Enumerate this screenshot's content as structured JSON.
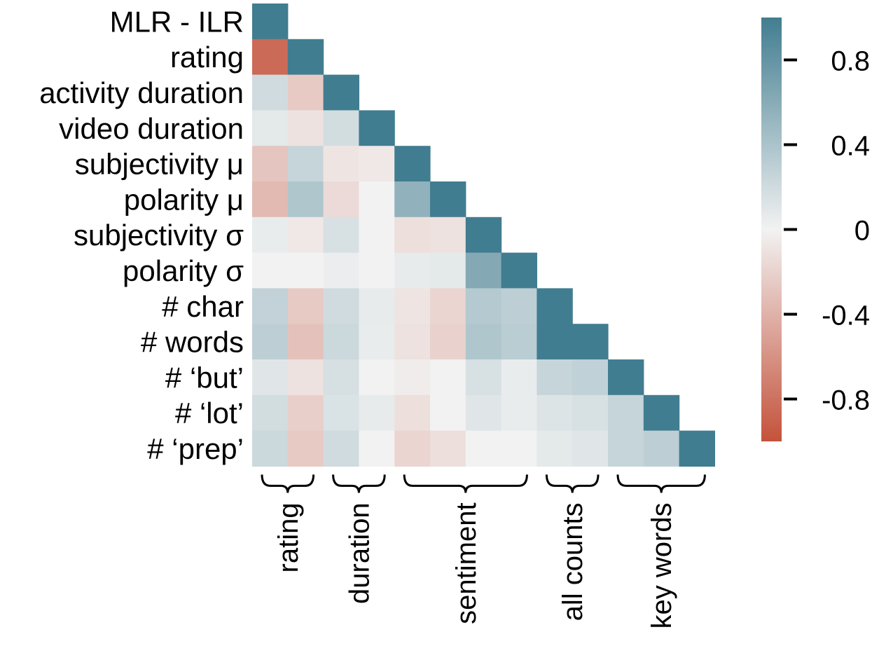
{
  "chart_data": {
    "type": "heatmap",
    "layout": "lower-triangle",
    "row_labels": [
      "MLR - ILR",
      "rating",
      "activity duration",
      "video duration",
      "subjectivity μ",
      "polarity μ",
      "subjectivity σ",
      "polarity σ",
      "# char",
      "# words",
      "# ‘but’",
      "# ‘lot’",
      "# ‘prep’"
    ],
    "values": [
      [
        1.0
      ],
      [
        -0.85,
        1.0
      ],
      [
        0.2,
        -0.25,
        1.0
      ],
      [
        0.08,
        -0.1,
        0.18,
        1.0
      ],
      [
        -0.28,
        0.25,
        -0.08,
        -0.06,
        1.0
      ],
      [
        -0.35,
        0.38,
        -0.15,
        0.0,
        0.55,
        1.0
      ],
      [
        0.05,
        -0.06,
        0.15,
        0.0,
        -0.12,
        -0.1,
        1.0
      ],
      [
        0.0,
        0.0,
        0.04,
        0.0,
        0.06,
        0.08,
        0.62,
        1.0
      ],
      [
        0.27,
        -0.25,
        0.2,
        0.06,
        -0.08,
        -0.18,
        0.35,
        0.3,
        1.0
      ],
      [
        0.3,
        -0.3,
        0.22,
        0.05,
        -0.1,
        -0.2,
        0.38,
        0.32,
        1.0,
        1.0
      ],
      [
        0.1,
        -0.1,
        0.16,
        0.0,
        -0.04,
        0.0,
        0.15,
        0.05,
        0.25,
        0.28,
        1.0
      ],
      [
        0.18,
        -0.22,
        0.14,
        0.06,
        -0.12,
        0.0,
        0.1,
        0.05,
        0.12,
        0.15,
        0.25,
        1.0
      ],
      [
        0.22,
        -0.25,
        0.2,
        0.0,
        -0.18,
        -0.12,
        0.0,
        0.0,
        0.08,
        0.1,
        0.25,
        0.3,
        1.0
      ]
    ],
    "vmin": -1,
    "vmax": 1,
    "colormap": {
      "negative": "#c4523b",
      "center": "#f2f2f2",
      "positive": "#417d90"
    },
    "groups": [
      {
        "label": "rating",
        "start": 0,
        "end": 1
      },
      {
        "label": "duration",
        "start": 2,
        "end": 3
      },
      {
        "label": "sentiment",
        "start": 4,
        "end": 7
      },
      {
        "label": "all counts",
        "start": 8,
        "end": 9
      },
      {
        "label": "key words",
        "start": 10,
        "end": 12
      }
    ],
    "colorbar": {
      "ticks": [
        0.8,
        0.4,
        0,
        -0.4,
        -0.8
      ],
      "tick_labels": [
        "0.8",
        "0.4",
        "0",
        "-0.4",
        "-0.8"
      ]
    },
    "xlabel": "",
    "ylabel": "",
    "title": ""
  }
}
